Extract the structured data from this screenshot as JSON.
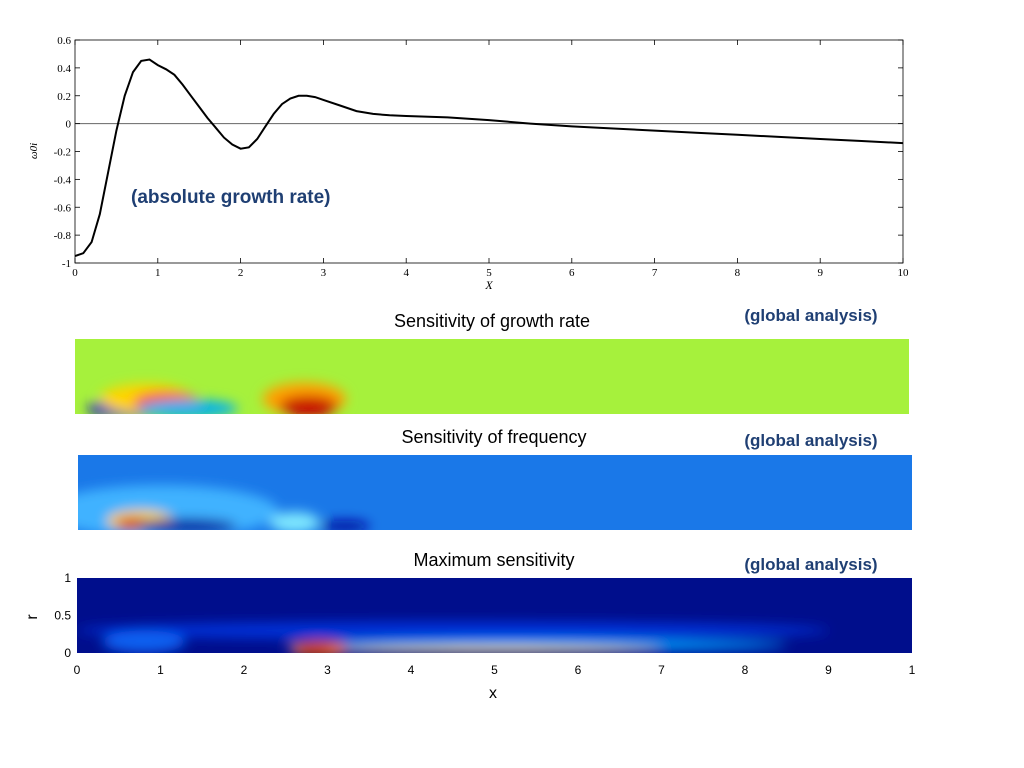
{
  "annotations": {
    "top": "(absolute growth rate)",
    "growth": "(global analysis)",
    "frequency": "(global analysis)",
    "maximum": "(global analysis)"
  },
  "chart_data": [
    {
      "type": "line",
      "title": "",
      "xlabel": "X",
      "ylabel": "ω0i",
      "xlim": [
        0,
        10
      ],
      "ylim": [
        -1,
        0.6
      ],
      "xticks": [
        "0",
        "1",
        "2",
        "3",
        "4",
        "5",
        "6",
        "7",
        "8",
        "9",
        "10"
      ],
      "yticks": [
        "0.6",
        "0.4",
        "0.2",
        "0",
        "-0.2",
        "-0.4",
        "-0.6",
        "-0.8",
        "-1"
      ],
      "zero_line": true,
      "color": "#000000",
      "series": [
        {
          "x": [
            0,
            0.1,
            0.2,
            0.3,
            0.4,
            0.5,
            0.6,
            0.7,
            0.8,
            0.9,
            1.0,
            1.1,
            1.2,
            1.3,
            1.4,
            1.5,
            1.6,
            1.7,
            1.8,
            1.9,
            2.0,
            2.1,
            2.2,
            2.3,
            2.4,
            2.5,
            2.6,
            2.7,
            2.8,
            2.9,
            3.0,
            3.2,
            3.4,
            3.6,
            3.8,
            4.0,
            4.5,
            5.0,
            5.5,
            6.0,
            6.5,
            7.0,
            7.5,
            8.0,
            8.5,
            9.0,
            9.5,
            10.0
          ],
          "values": [
            -0.95,
            -0.93,
            -0.85,
            -0.65,
            -0.35,
            -0.05,
            0.2,
            0.37,
            0.45,
            0.46,
            0.42,
            0.39,
            0.35,
            0.28,
            0.2,
            0.12,
            0.04,
            -0.03,
            -0.1,
            -0.15,
            -0.18,
            -0.17,
            -0.11,
            -0.02,
            0.07,
            0.14,
            0.18,
            0.2,
            0.2,
            0.19,
            0.17,
            0.13,
            0.09,
            0.07,
            0.06,
            0.055,
            0.045,
            0.025,
            0.0,
            -0.02,
            -0.035,
            -0.05,
            -0.065,
            -0.08,
            -0.095,
            -0.11,
            -0.125,
            -0.14
          ]
        }
      ]
    },
    {
      "type": "heatmap",
      "title": "Sensitivity of growth rate",
      "xlim": [
        0,
        10
      ],
      "ylim": [
        0,
        1
      ],
      "background": "#a6f13c",
      "blobs": [
        {
          "x": 0.6,
          "y": 0.07,
          "rx": 0.45,
          "ry": 0.12,
          "color": "#0000c8"
        },
        {
          "x": 0.85,
          "y": 0.2,
          "rx": 0.55,
          "ry": 0.2,
          "color": "#ffd400"
        },
        {
          "x": 1.1,
          "y": 0.15,
          "rx": 0.4,
          "ry": 0.14,
          "color": "#ff2000"
        },
        {
          "x": 1.35,
          "y": 0.07,
          "rx": 0.6,
          "ry": 0.12,
          "color": "#00b0f0"
        },
        {
          "x": 2.75,
          "y": 0.2,
          "rx": 0.5,
          "ry": 0.22,
          "color": "#ffa000"
        },
        {
          "x": 2.8,
          "y": 0.1,
          "rx": 0.35,
          "ry": 0.14,
          "color": "#c80000"
        }
      ]
    },
    {
      "type": "heatmap",
      "title": "Sensitivity of frequency",
      "xlim": [
        0,
        10
      ],
      "ylim": [
        0,
        1
      ],
      "background": "#1a78e8",
      "blobs": [
        {
          "x": 1.0,
          "y": 0.25,
          "rx": 1.4,
          "ry": 0.35,
          "color": "#3fb2ff"
        },
        {
          "x": 0.75,
          "y": 0.12,
          "rx": 0.4,
          "ry": 0.14,
          "color": "#ffd400"
        },
        {
          "x": 0.65,
          "y": 0.08,
          "rx": 0.2,
          "ry": 0.08,
          "color": "#d02000"
        },
        {
          "x": 1.3,
          "y": 0.05,
          "rx": 0.6,
          "ry": 0.1,
          "color": "#0010a0"
        },
        {
          "x": 2.6,
          "y": 0.1,
          "rx": 0.3,
          "ry": 0.14,
          "color": "#7fe8ff"
        },
        {
          "x": 3.2,
          "y": 0.05,
          "rx": 0.3,
          "ry": 0.08,
          "color": "#0010a0"
        }
      ]
    },
    {
      "type": "heatmap",
      "title": "Maximum sensitivity",
      "xlabel": "x",
      "ylabel": "r",
      "xlim": [
        0,
        10
      ],
      "ylim": [
        0,
        1
      ],
      "xticks": [
        "0",
        "1",
        "2",
        "3",
        "4",
        "5",
        "6",
        "7",
        "8",
        "9",
        "1"
      ],
      "yticks": [
        "1",
        "0.5",
        "0"
      ],
      "background": "#000e8c",
      "blobs": [
        {
          "x": 4.5,
          "y": 0.3,
          "rx": 4.5,
          "ry": 0.12,
          "color": "#0030d8"
        },
        {
          "x": 5.5,
          "y": 0.1,
          "rx": 3.0,
          "ry": 0.08,
          "color": "#00a0ff"
        },
        {
          "x": 5.0,
          "y": 0.04,
          "rx": 2.0,
          "ry": 0.04,
          "color": "#ffe000"
        },
        {
          "x": 2.9,
          "y": 0.05,
          "rx": 0.35,
          "ry": 0.1,
          "color": "#ff7000"
        },
        {
          "x": 2.85,
          "y": 0.04,
          "rx": 0.2,
          "ry": 0.05,
          "color": "#c00000"
        },
        {
          "x": 0.8,
          "y": 0.15,
          "rx": 0.5,
          "ry": 0.15,
          "color": "#1060f0"
        }
      ]
    }
  ]
}
